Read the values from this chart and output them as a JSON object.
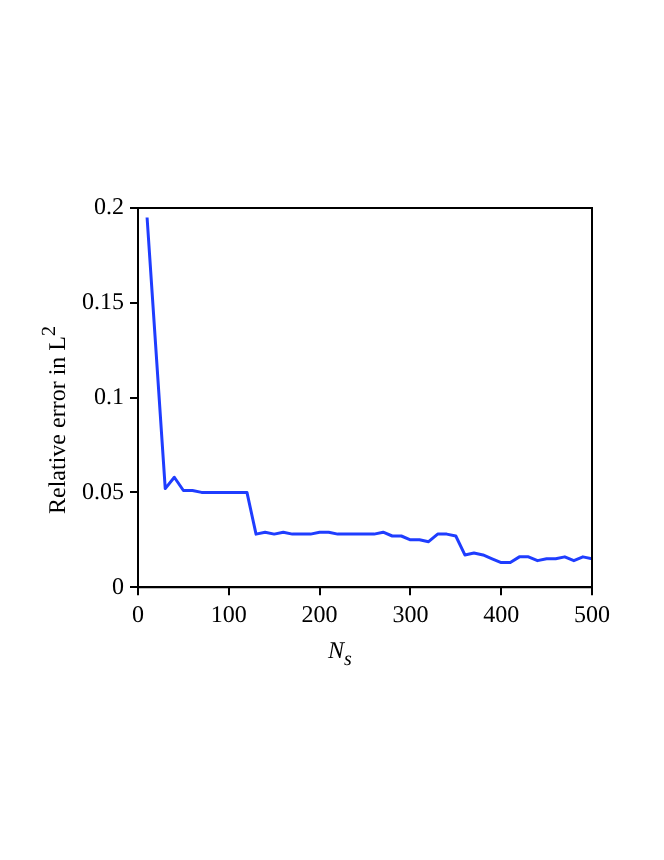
{
  "chart_data": {
    "type": "line",
    "xlabel": "N$_{s}$",
    "ylabel": "Relative error in L$^{2}$",
    "series": [
      {
        "color": "#1f3dff",
        "x": [
          10,
          30,
          40,
          50,
          60,
          70,
          80,
          90,
          100,
          110,
          120,
          130,
          140,
          150,
          160,
          170,
          180,
          190,
          200,
          210,
          220,
          230,
          240,
          250,
          260,
          270,
          280,
          290,
          300,
          310,
          320,
          330,
          340,
          350,
          360,
          370,
          380,
          390,
          400,
          410,
          420,
          430,
          440,
          450,
          460,
          470,
          480,
          490,
          500
        ],
        "values": [
          0.195,
          0.052,
          0.058,
          0.051,
          0.051,
          0.05,
          0.05,
          0.05,
          0.05,
          0.05,
          0.05,
          0.028,
          0.029,
          0.028,
          0.029,
          0.028,
          0.028,
          0.028,
          0.029,
          0.029,
          0.028,
          0.028,
          0.028,
          0.028,
          0.028,
          0.029,
          0.027,
          0.027,
          0.025,
          0.025,
          0.024,
          0.028,
          0.028,
          0.027,
          0.017,
          0.018,
          0.017,
          0.015,
          0.013,
          0.013,
          0.016,
          0.016,
          0.014,
          0.015,
          0.015,
          0.016,
          0.014,
          0.016,
          0.015
        ]
      }
    ],
    "xlim": [
      0,
      500
    ],
    "xticks": [
      0,
      100,
      200,
      300,
      400,
      500
    ],
    "ylim": [
      0,
      0.2
    ],
    "yticks": [
      0,
      0.05,
      0.1,
      0.15,
      0.2
    ],
    "grid": false,
    "legend": false,
    "marker": "none",
    "line_style": "solid"
  }
}
